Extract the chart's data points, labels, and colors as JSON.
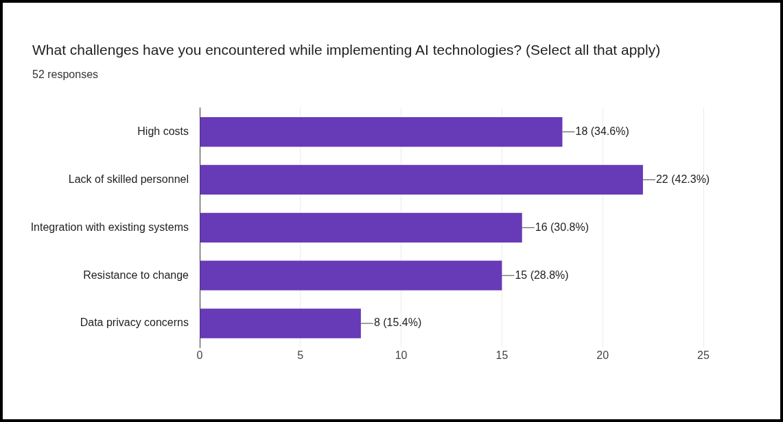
{
  "chart_data": {
    "type": "bar",
    "orientation": "horizontal",
    "title": "What challenges have you encountered while implementing AI technologies? (Select all that apply)",
    "subtitle": "52 responses",
    "categories": [
      "High costs",
      "Lack of skilled personnel",
      "Integration with existing systems",
      "Resistance to change",
      "Data privacy concerns"
    ],
    "values": [
      18,
      22,
      16,
      15,
      8
    ],
    "value_labels": [
      "18 (34.6%)",
      "22 (42.3%)",
      "16 (30.8%)",
      "15 (28.8%)",
      "8 (15.4%)"
    ],
    "color": "#673ab7",
    "xlim": [
      0,
      25
    ],
    "xticks": [
      0,
      5,
      10,
      15,
      20,
      25
    ],
    "grid": "x",
    "legend": false
  }
}
